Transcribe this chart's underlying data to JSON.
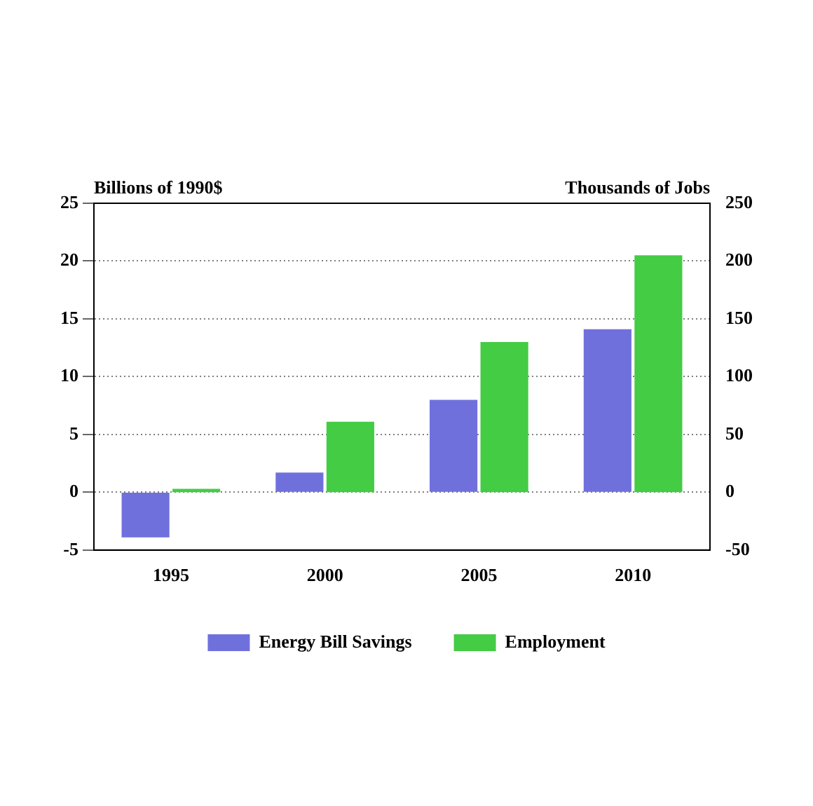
{
  "chart_data": {
    "type": "bar",
    "ylabel": "Billions of 1990$",
    "y2label": "Thousands of Jobs",
    "categories": [
      "1995",
      "2000",
      "2005",
      "2010"
    ],
    "series": [
      {
        "name": "Energy Bill Savings",
        "color": "#7070dd",
        "values": [
          -3.9,
          1.7,
          8.0,
          14.1
        ]
      },
      {
        "name": "Employment",
        "color": "#44cc44",
        "axis": "y2",
        "values": [
          3,
          61,
          130,
          205
        ]
      }
    ],
    "ylim": [
      -5,
      25
    ],
    "yticks": [
      -5,
      0,
      5,
      10,
      15,
      20,
      25
    ],
    "y2lim": [
      -50,
      250
    ],
    "y2ticks": [
      -50,
      0,
      50,
      100,
      150,
      200,
      250
    ],
    "grid": "y",
    "legend": "bottom"
  }
}
